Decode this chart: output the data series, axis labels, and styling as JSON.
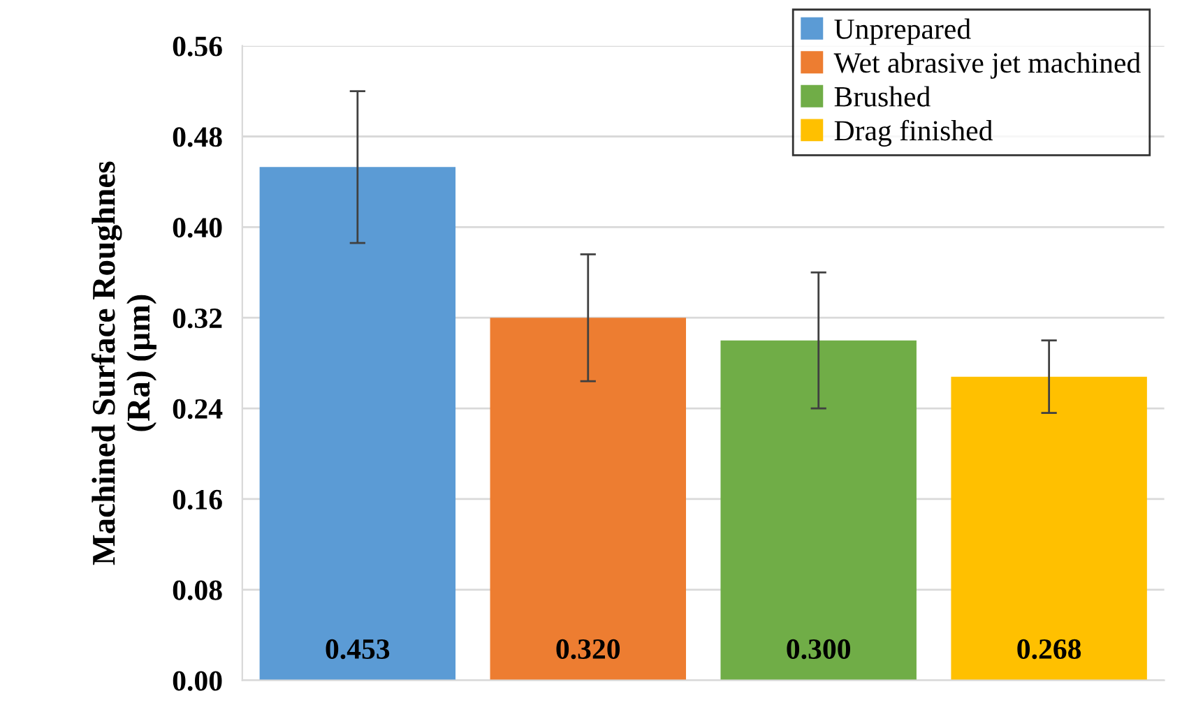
{
  "chart_data": {
    "type": "bar",
    "ylabel": "Machined Surface Roughnes\n(Ra) (µm)",
    "categories": [
      null,
      null,
      null,
      null
    ],
    "series": [
      {
        "name": "Unprepared",
        "color": "#5b9bd5",
        "values": [
          0.453,
          null,
          null,
          null
        ],
        "errors": [
          0.067,
          null,
          null,
          null
        ],
        "value_labels": [
          "0.453",
          null,
          null,
          null
        ]
      },
      {
        "name": "Wet abrasive jet machined",
        "color": "#ed7d31",
        "values": [
          null,
          0.32,
          null,
          null
        ],
        "errors": [
          null,
          0.056,
          null,
          null
        ],
        "value_labels": [
          null,
          "0.320",
          null,
          null
        ]
      },
      {
        "name": "Brushed",
        "color": "#70ad47",
        "values": [
          null,
          null,
          0.3,
          null
        ],
        "errors": [
          null,
          null,
          0.06,
          null
        ],
        "value_labels": [
          null,
          null,
          "0.300",
          null
        ]
      },
      {
        "name": "Drag finished",
        "color": "#ffc000",
        "values": [
          null,
          null,
          null,
          0.268
        ],
        "errors": [
          null,
          null,
          null,
          0.032
        ],
        "value_labels": [
          null,
          null,
          null,
          "0.268"
        ]
      }
    ],
    "ylim": [
      0,
      0.56
    ],
    "yticks": [
      {
        "value": 0,
        "label": "0.00"
      },
      {
        "value": 0.08,
        "label": "0.08"
      },
      {
        "value": 0.16,
        "label": "0.16"
      },
      {
        "value": 0.24,
        "label": "0.24"
      },
      {
        "value": 0.32,
        "label": "0.32"
      },
      {
        "value": 0.4,
        "label": "0.40"
      },
      {
        "value": 0.48,
        "label": "0.48"
      },
      {
        "value": 0.56,
        "label": "0.56"
      }
    ],
    "grid": "y",
    "legend": "top right",
    "tick_labels": "y"
  }
}
